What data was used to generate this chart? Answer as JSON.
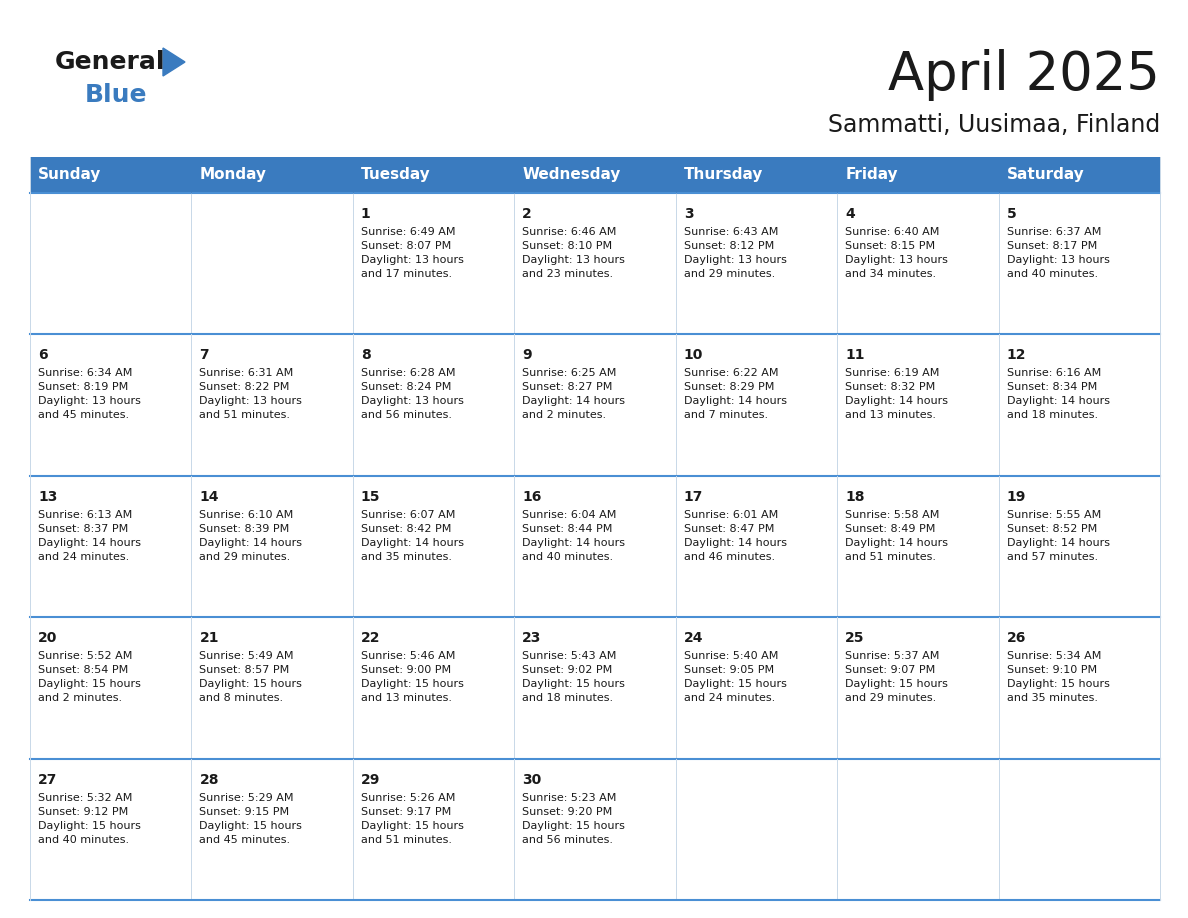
{
  "title": "April 2025",
  "subtitle": "Sammatti, Uusimaa, Finland",
  "header_bg_color": "#3a7bbf",
  "header_text_color": "#ffffff",
  "border_color": "#3a7bbf",
  "row_border_color": "#4a8fd4",
  "col_border_color": "#c8d8e8",
  "title_color": "#1a1a1a",
  "subtitle_color": "#1a1a1a",
  "day_names": [
    "Sunday",
    "Monday",
    "Tuesday",
    "Wednesday",
    "Thursday",
    "Friday",
    "Saturday"
  ],
  "weeks": [
    [
      {
        "day": 0,
        "text": ""
      },
      {
        "day": 0,
        "text": ""
      },
      {
        "day": 1,
        "text": "Sunrise: 6:49 AM\nSunset: 8:07 PM\nDaylight: 13 hours\nand 17 minutes."
      },
      {
        "day": 2,
        "text": "Sunrise: 6:46 AM\nSunset: 8:10 PM\nDaylight: 13 hours\nand 23 minutes."
      },
      {
        "day": 3,
        "text": "Sunrise: 6:43 AM\nSunset: 8:12 PM\nDaylight: 13 hours\nand 29 minutes."
      },
      {
        "day": 4,
        "text": "Sunrise: 6:40 AM\nSunset: 8:15 PM\nDaylight: 13 hours\nand 34 minutes."
      },
      {
        "day": 5,
        "text": "Sunrise: 6:37 AM\nSunset: 8:17 PM\nDaylight: 13 hours\nand 40 minutes."
      }
    ],
    [
      {
        "day": 6,
        "text": "Sunrise: 6:34 AM\nSunset: 8:19 PM\nDaylight: 13 hours\nand 45 minutes."
      },
      {
        "day": 7,
        "text": "Sunrise: 6:31 AM\nSunset: 8:22 PM\nDaylight: 13 hours\nand 51 minutes."
      },
      {
        "day": 8,
        "text": "Sunrise: 6:28 AM\nSunset: 8:24 PM\nDaylight: 13 hours\nand 56 minutes."
      },
      {
        "day": 9,
        "text": "Sunrise: 6:25 AM\nSunset: 8:27 PM\nDaylight: 14 hours\nand 2 minutes."
      },
      {
        "day": 10,
        "text": "Sunrise: 6:22 AM\nSunset: 8:29 PM\nDaylight: 14 hours\nand 7 minutes."
      },
      {
        "day": 11,
        "text": "Sunrise: 6:19 AM\nSunset: 8:32 PM\nDaylight: 14 hours\nand 13 minutes."
      },
      {
        "day": 12,
        "text": "Sunrise: 6:16 AM\nSunset: 8:34 PM\nDaylight: 14 hours\nand 18 minutes."
      }
    ],
    [
      {
        "day": 13,
        "text": "Sunrise: 6:13 AM\nSunset: 8:37 PM\nDaylight: 14 hours\nand 24 minutes."
      },
      {
        "day": 14,
        "text": "Sunrise: 6:10 AM\nSunset: 8:39 PM\nDaylight: 14 hours\nand 29 minutes."
      },
      {
        "day": 15,
        "text": "Sunrise: 6:07 AM\nSunset: 8:42 PM\nDaylight: 14 hours\nand 35 minutes."
      },
      {
        "day": 16,
        "text": "Sunrise: 6:04 AM\nSunset: 8:44 PM\nDaylight: 14 hours\nand 40 minutes."
      },
      {
        "day": 17,
        "text": "Sunrise: 6:01 AM\nSunset: 8:47 PM\nDaylight: 14 hours\nand 46 minutes."
      },
      {
        "day": 18,
        "text": "Sunrise: 5:58 AM\nSunset: 8:49 PM\nDaylight: 14 hours\nand 51 minutes."
      },
      {
        "day": 19,
        "text": "Sunrise: 5:55 AM\nSunset: 8:52 PM\nDaylight: 14 hours\nand 57 minutes."
      }
    ],
    [
      {
        "day": 20,
        "text": "Sunrise: 5:52 AM\nSunset: 8:54 PM\nDaylight: 15 hours\nand 2 minutes."
      },
      {
        "day": 21,
        "text": "Sunrise: 5:49 AM\nSunset: 8:57 PM\nDaylight: 15 hours\nand 8 minutes."
      },
      {
        "day": 22,
        "text": "Sunrise: 5:46 AM\nSunset: 9:00 PM\nDaylight: 15 hours\nand 13 minutes."
      },
      {
        "day": 23,
        "text": "Sunrise: 5:43 AM\nSunset: 9:02 PM\nDaylight: 15 hours\nand 18 minutes."
      },
      {
        "day": 24,
        "text": "Sunrise: 5:40 AM\nSunset: 9:05 PM\nDaylight: 15 hours\nand 24 minutes."
      },
      {
        "day": 25,
        "text": "Sunrise: 5:37 AM\nSunset: 9:07 PM\nDaylight: 15 hours\nand 29 minutes."
      },
      {
        "day": 26,
        "text": "Sunrise: 5:34 AM\nSunset: 9:10 PM\nDaylight: 15 hours\nand 35 minutes."
      }
    ],
    [
      {
        "day": 27,
        "text": "Sunrise: 5:32 AM\nSunset: 9:12 PM\nDaylight: 15 hours\nand 40 minutes."
      },
      {
        "day": 28,
        "text": "Sunrise: 5:29 AM\nSunset: 9:15 PM\nDaylight: 15 hours\nand 45 minutes."
      },
      {
        "day": 29,
        "text": "Sunrise: 5:26 AM\nSunset: 9:17 PM\nDaylight: 15 hours\nand 51 minutes."
      },
      {
        "day": 30,
        "text": "Sunrise: 5:23 AM\nSunset: 9:20 PM\nDaylight: 15 hours\nand 56 minutes."
      },
      {
        "day": 0,
        "text": ""
      },
      {
        "day": 0,
        "text": ""
      },
      {
        "day": 0,
        "text": ""
      }
    ]
  ],
  "logo_general_color": "#1a1a1a",
  "logo_blue_color": "#3a7bbf",
  "logo_triangle_color": "#3a7bbf"
}
